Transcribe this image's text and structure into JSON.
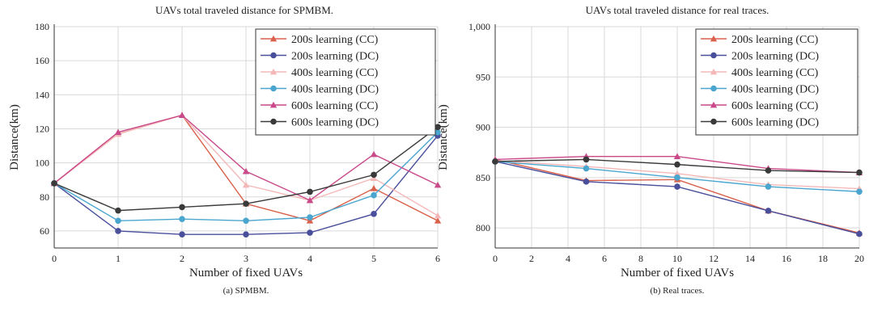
{
  "chart_data": [
    {
      "type": "line",
      "title": "UAVs total traveled distance for SPMBM.",
      "caption": "(a) SPMBM.",
      "xlabel": "Number of fixed UAVs",
      "ylabel": "Distance(km)",
      "x": [
        0,
        1,
        2,
        3,
        4,
        5,
        6
      ],
      "xticks": [
        "0",
        "1",
        "2",
        "3",
        "4",
        "5",
        "6"
      ],
      "xlim": [
        0,
        6
      ],
      "ylim": [
        50,
        180
      ],
      "yticks": [
        60,
        80,
        100,
        120,
        140,
        160,
        180
      ],
      "ytick_labels": [
        "60",
        "80",
        "100",
        "120",
        "140",
        "160",
        "180"
      ],
      "grid": true,
      "legend_position": "top-right",
      "series": [
        {
          "name": "200s learning (CC)",
          "color": "#d9604a",
          "marker": "triangle",
          "values": [
            88,
            117,
            128,
            76,
            66,
            85,
            66
          ]
        },
        {
          "name": "200s learning (DC)",
          "color": "#4a4f9c",
          "marker": "circle",
          "values": [
            88,
            60,
            58,
            58,
            59,
            70,
            116
          ]
        },
        {
          "name": "400s learning (CC)",
          "color": "#f4b8b8",
          "marker": "triangle",
          "values": [
            88,
            117,
            128,
            87,
            78,
            91,
            69
          ]
        },
        {
          "name": "400s learning (DC)",
          "color": "#4aa6cf",
          "marker": "circle",
          "values": [
            88,
            66,
            67,
            66,
            68,
            81,
            118
          ]
        },
        {
          "name": "600s learning (CC)",
          "color": "#c9498a",
          "marker": "triangle",
          "values": [
            88,
            118,
            128,
            95,
            78,
            105,
            87
          ]
        },
        {
          "name": "600s learning (DC)",
          "color": "#3a3a3a",
          "marker": "circle",
          "values": [
            88,
            72,
            74,
            76,
            83,
            93,
            121
          ]
        }
      ]
    },
    {
      "type": "line",
      "title": "UAVs total traveled distance for real traces.",
      "caption": "(b) Real traces.",
      "xlabel": "Number of fixed UAVs",
      "ylabel": "Distance(km)",
      "x": [
        0,
        5,
        10,
        15,
        20
      ],
      "xticks": [
        "0",
        "2",
        "4",
        "6",
        "8",
        "10",
        "12",
        "14",
        "16",
        "18",
        "20"
      ],
      "xlim": [
        0,
        20
      ],
      "ylim": [
        780,
        1000
      ],
      "yticks": [
        800,
        850,
        900,
        950,
        1000
      ],
      "ytick_labels": [
        "800",
        "850",
        "900",
        "950",
        "1,000"
      ],
      "grid": true,
      "legend_position": "top-right",
      "series": [
        {
          "name": "200s learning (CC)",
          "color": "#d9604a",
          "marker": "triangle",
          "values": [
            868,
            847,
            848,
            817,
            795
          ]
        },
        {
          "name": "200s learning (DC)",
          "color": "#4a4f9c",
          "marker": "circle",
          "values": [
            866,
            846,
            841,
            817,
            794
          ]
        },
        {
          "name": "400s learning (CC)",
          "color": "#f4b8b8",
          "marker": "triangle",
          "values": [
            867,
            861,
            854,
            843,
            839
          ]
        },
        {
          "name": "400s learning (DC)",
          "color": "#4aa6cf",
          "marker": "circle",
          "values": [
            866,
            859,
            850,
            841,
            836
          ]
        },
        {
          "name": "600s learning (CC)",
          "color": "#c9498a",
          "marker": "triangle",
          "values": [
            868,
            871,
            871,
            859,
            855
          ]
        },
        {
          "name": "600s learning (DC)",
          "color": "#3a3a3a",
          "marker": "circle",
          "values": [
            866,
            868,
            863,
            857,
            855
          ]
        }
      ]
    }
  ]
}
